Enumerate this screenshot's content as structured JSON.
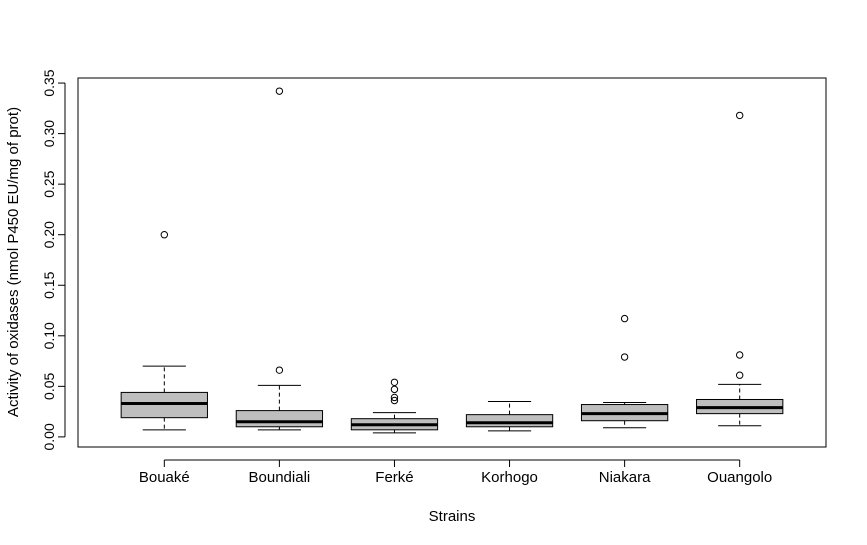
{
  "chart_data": {
    "type": "boxplot",
    "title": "",
    "xlabel": "Strains",
    "ylabel": "Activity of oxidases (nmol P450 EU/mg of prot)",
    "ylim": [
      -0.01,
      0.355
    ],
    "yticks": [
      "0.00",
      "0.05",
      "0.10",
      "0.15",
      "0.20",
      "0.25",
      "0.30",
      "0.35"
    ],
    "grid": false,
    "legend": "none",
    "box_fill": "#bebebe",
    "categories": [
      "Bouaké",
      "Boundiali",
      "Ferké",
      "Korhogo",
      "Niakara",
      "Ouangolo"
    ],
    "boxes": [
      {
        "name": "Bouaké",
        "whisker_low": 0.007,
        "q1": 0.019,
        "median": 0.033,
        "q3": 0.044,
        "whisker_high": 0.07,
        "outliers": [
          0.2
        ]
      },
      {
        "name": "Boundiali",
        "whisker_low": 0.007,
        "q1": 0.01,
        "median": 0.015,
        "q3": 0.026,
        "whisker_high": 0.051,
        "outliers": [
          0.066,
          0.342
        ]
      },
      {
        "name": "Ferké",
        "whisker_low": 0.004,
        "q1": 0.007,
        "median": 0.012,
        "q3": 0.018,
        "whisker_high": 0.024,
        "outliers": [
          0.036,
          0.039,
          0.047,
          0.054
        ]
      },
      {
        "name": "Korhogo",
        "whisker_low": 0.006,
        "q1": 0.01,
        "median": 0.014,
        "q3": 0.022,
        "whisker_high": 0.035,
        "outliers": []
      },
      {
        "name": "Niakara",
        "whisker_low": 0.009,
        "q1": 0.016,
        "median": 0.023,
        "q3": 0.032,
        "whisker_high": 0.034,
        "outliers": [
          0.079,
          0.117
        ]
      },
      {
        "name": "Ouangolo",
        "whisker_low": 0.011,
        "q1": 0.023,
        "median": 0.029,
        "q3": 0.037,
        "whisker_high": 0.052,
        "outliers": [
          0.061,
          0.081,
          0.318
        ]
      }
    ]
  }
}
